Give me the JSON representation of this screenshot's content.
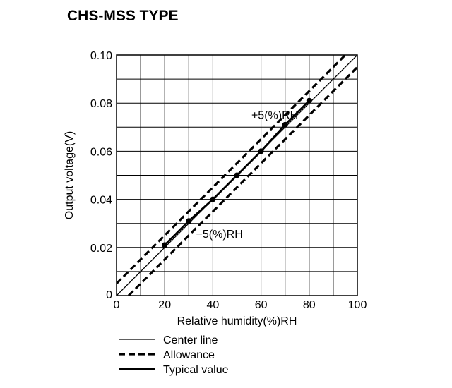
{
  "title": "CHS-MSS TYPE",
  "chart_data": {
    "type": "line",
    "xlabel": "Relative humidity(%)RH",
    "ylabel": "Output voltage(V)",
    "xlim": [
      0,
      100
    ],
    "ylim": [
      0,
      0.1
    ],
    "x_ticks": [
      0,
      20,
      40,
      60,
      80,
      100
    ],
    "x_tick_labels": [
      "0",
      "20",
      "40",
      "60",
      "80",
      "100"
    ],
    "y_ticks": [
      0,
      0.02,
      0.04,
      0.06,
      0.08,
      0.1
    ],
    "y_tick_labels": [
      "0",
      "0.02",
      "0.04",
      "0.06",
      "0.08",
      "0.10"
    ],
    "grid": true,
    "grid_x_step": 10,
    "grid_y_step": 0.01,
    "series": [
      {
        "name": "Center line",
        "style": "thin-solid",
        "x": [
          0,
          100
        ],
        "y": [
          0,
          0.1
        ]
      },
      {
        "name": "Allowance",
        "style": "dashed",
        "x": [
          0,
          95
        ],
        "y": [
          0.005,
          0.1
        ]
      },
      {
        "name": "Allowance",
        "style": "dashed",
        "x": [
          5,
          100
        ],
        "y": [
          0,
          0.095
        ]
      },
      {
        "name": "Typical value",
        "style": "thick-solid",
        "markers": true,
        "x": [
          20,
          30,
          40,
          50,
          60,
          70,
          80
        ],
        "y": [
          0.021,
          0.031,
          0.04,
          0.05,
          0.06,
          0.071,
          0.081
        ]
      }
    ],
    "annotations": [
      {
        "text": "+5(%)RH",
        "x": 56,
        "y": 0.0735
      },
      {
        "text": "−5(%)RH",
        "x": 33,
        "y": 0.024
      }
    ],
    "legend": {
      "placement": "bottom-left",
      "entries": [
        {
          "label": "Center line",
          "style": "thin-solid"
        },
        {
          "label": "Allowance",
          "style": "dashed"
        },
        {
          "label": "Typical value",
          "style": "thick-solid"
        }
      ]
    }
  }
}
